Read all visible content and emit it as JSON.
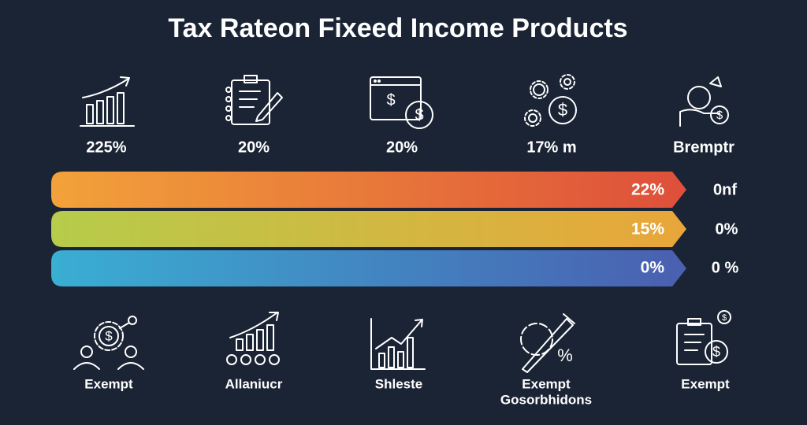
{
  "title": "Tax Rateon Fixeed Income Products",
  "top_items": [
    {
      "label": "225%"
    },
    {
      "label": "20%"
    },
    {
      "label": "20%"
    },
    {
      "label": "17% m"
    },
    {
      "label": "Bremptr"
    }
  ],
  "bars": [
    {
      "label": "22%",
      "side": "0nf"
    },
    {
      "label": "15%",
      "side": "0%"
    },
    {
      "label": "0%",
      "side": "0 %"
    }
  ],
  "bottom_items": [
    {
      "label": "Exempt"
    },
    {
      "label": "Allaniucr"
    },
    {
      "label": "Shleste"
    },
    {
      "label": "Exempt",
      "label2": "Gosorbhidons"
    },
    {
      "label": "Exempt"
    }
  ]
}
